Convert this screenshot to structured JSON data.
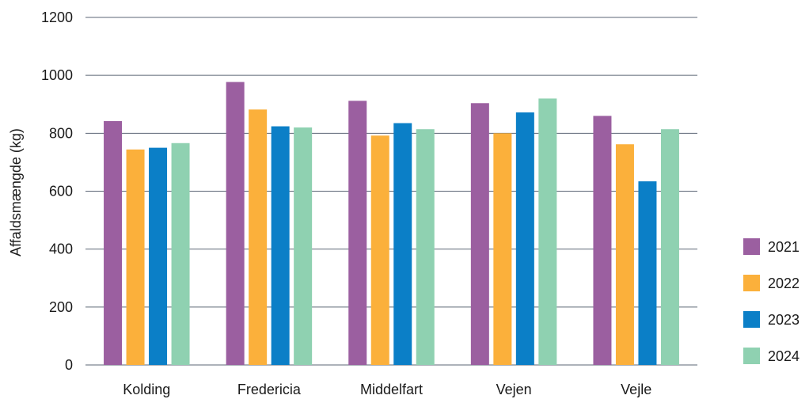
{
  "chart_data": {
    "type": "bar",
    "title": "",
    "xlabel": "",
    "ylabel": "Affaldsmængde (kg)",
    "ylim": [
      0,
      1200
    ],
    "yticks": [
      0,
      200,
      400,
      600,
      800,
      1000,
      1200
    ],
    "grid": true,
    "legend_position": "right-bottom",
    "categories": [
      "Kolding",
      "Fredericia",
      "Middelfart",
      "Vejen",
      "Vejle"
    ],
    "series": [
      {
        "name": "2021",
        "color": "#9b5fa0",
        "values": [
          842,
          977,
          912,
          904,
          860
        ]
      },
      {
        "name": "2022",
        "color": "#fbb03b",
        "values": [
          744,
          882,
          792,
          800,
          762
        ]
      },
      {
        "name": "2023",
        "color": "#0b7fc7",
        "values": [
          750,
          824,
          835,
          872,
          634
        ]
      },
      {
        "name": "2024",
        "color": "#8fd1b1",
        "values": [
          766,
          820,
          814,
          920,
          814
        ]
      }
    ]
  }
}
